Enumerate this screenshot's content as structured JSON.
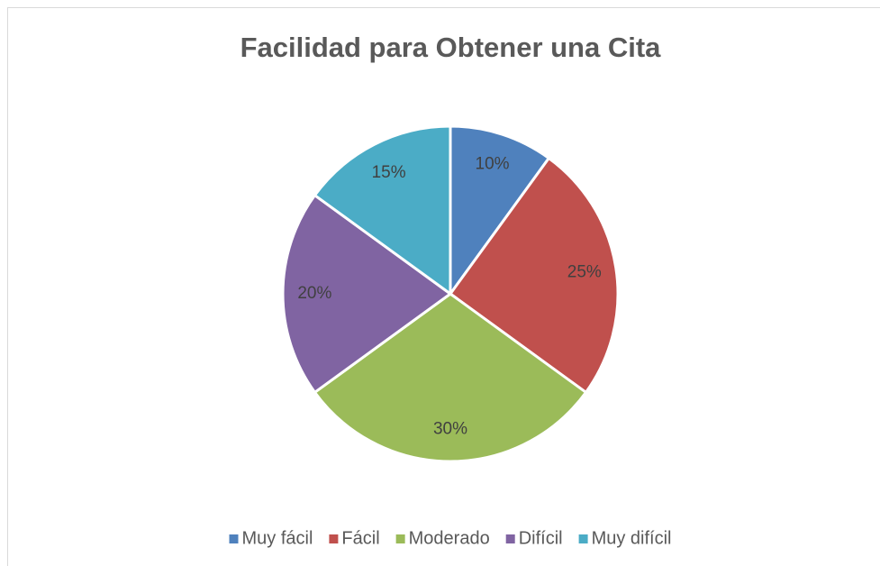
{
  "chart_data": {
    "type": "pie",
    "title": "Facilidad para Obtener una Cita",
    "categories": [
      "Muy fácil",
      "Fácil",
      "Moderado",
      "Difícil",
      "Muy difícil"
    ],
    "values": [
      10,
      25,
      30,
      20,
      15
    ],
    "value_labels": [
      "10%",
      "25%",
      "30%",
      "20%",
      "15%"
    ],
    "colors": [
      "#4f81bd",
      "#c0504d",
      "#9bbb59",
      "#8064a2",
      "#4bacc6"
    ],
    "legend": "bottom"
  }
}
